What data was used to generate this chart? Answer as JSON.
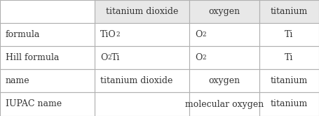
{
  "header_row": [
    "",
    "titanium dioxide",
    "oxygen",
    "titanium"
  ],
  "rows": [
    {
      "label": "formula",
      "cells": [
        {
          "parts": [
            [
              "TiO",
              false
            ],
            [
              "2",
              true
            ]
          ],
          "plain": ""
        },
        {
          "parts": [
            [
              "O",
              false
            ],
            [
              "2",
              true
            ]
          ],
          "plain": ""
        },
        {
          "plain": "Ti"
        }
      ]
    },
    {
      "label": "Hill formula",
      "cells": [
        {
          "parts": [
            [
              "O",
              false
            ],
            [
              "2",
              true
            ],
            [
              "Ti",
              false
            ]
          ],
          "plain": ""
        },
        {
          "parts": [
            [
              "O",
              false
            ],
            [
              "2",
              true
            ]
          ],
          "plain": ""
        },
        {
          "plain": "Ti"
        }
      ]
    },
    {
      "label": "name",
      "cells": [
        {
          "plain": "titanium dioxide"
        },
        {
          "plain": "oxygen"
        },
        {
          "plain": "titanium"
        }
      ]
    },
    {
      "label": "IUPAC name",
      "cells": [
        {
          "plain": ""
        },
        {
          "plain": "molecular oxygen"
        },
        {
          "plain": "titanium"
        }
      ]
    }
  ],
  "col_edges": [
    0,
    135,
    270,
    370,
    455
  ],
  "row_edges": [
    0,
    33,
    66,
    99,
    132,
    166
  ],
  "header_bg": "#e8e8e8",
  "cell_bg": "#ffffff",
  "line_color": "#b0b0b0",
  "text_color": "#333333",
  "font_size": 9.0
}
